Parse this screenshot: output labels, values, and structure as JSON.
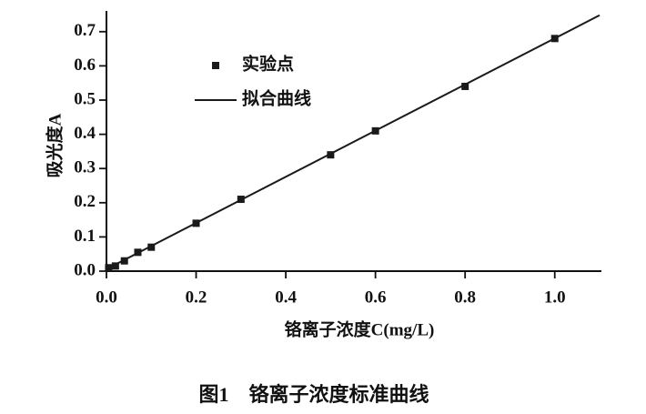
{
  "chart_data": {
    "type": "scatter",
    "caption": "图1　铬离子浓度标准曲线",
    "x_label": "铬离子浓度C(mg/L)",
    "y_label": "吸光度A",
    "series": [
      {
        "name": "实验点",
        "type": "scatter",
        "color": "#1a1a1a",
        "x": [
          0.005,
          0.02,
          0.04,
          0.07,
          0.1,
          0.2,
          0.3,
          0.5,
          0.6,
          0.8,
          1.0
        ],
        "values": [
          0.01,
          0.015,
          0.03,
          0.055,
          0.07,
          0.14,
          0.21,
          0.34,
          0.41,
          0.54,
          0.68
        ]
      },
      {
        "name": "拟合曲线",
        "type": "line",
        "color": "#1a1a1a",
        "x": [
          0,
          1.1
        ],
        "values": [
          0.006,
          0.748
        ]
      }
    ],
    "xlim": [
      0,
      1.1
    ],
    "xticks": [
      {
        "value": 0,
        "label": "0.0"
      },
      0.2,
      0.4,
      0.6,
      0.8,
      {
        "value": 1,
        "label": "1.0"
      }
    ],
    "ylim": [
      0,
      0.75
    ],
    "yticks": [
      {
        "value": 0,
        "label": "0.0"
      },
      0.1,
      0.2,
      0.3,
      0.4,
      0.5,
      0.6,
      0.7
    ]
  }
}
